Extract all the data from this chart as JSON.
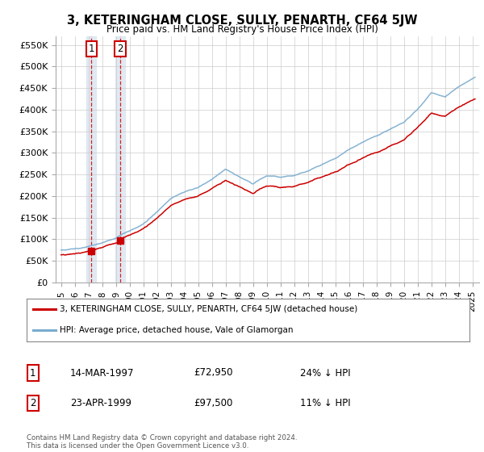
{
  "title": "3, KETERINGHAM CLOSE, SULLY, PENARTH, CF64 5JW",
  "subtitle": "Price paid vs. HM Land Registry's House Price Index (HPI)",
  "legend_line1": "3, KETERINGHAM CLOSE, SULLY, PENARTH, CF64 5JW (detached house)",
  "legend_line2": "HPI: Average price, detached house, Vale of Glamorgan",
  "sale1_date": "14-MAR-1997",
  "sale1_price": 72950,
  "sale1_note": "24% ↓ HPI",
  "sale2_date": "23-APR-1999",
  "sale2_price": 97500,
  "sale2_note": "11% ↓ HPI",
  "copyright": "Contains HM Land Registry data © Crown copyright and database right 2024.\nThis data is licensed under the Open Government Licence v3.0.",
  "ylim": [
    0,
    570000
  ],
  "yticks": [
    0,
    50000,
    100000,
    150000,
    200000,
    250000,
    300000,
    350000,
    400000,
    450000,
    500000,
    550000
  ],
  "red_color": "#cc0000",
  "blue_color": "#7aabcf",
  "bg_color": "#dce6f0",
  "plot_bg": "#ffffff",
  "sale1_year": 1997.21,
  "sale2_year": 1999.31,
  "start_year": 1995.0,
  "end_year": 2025.2
}
